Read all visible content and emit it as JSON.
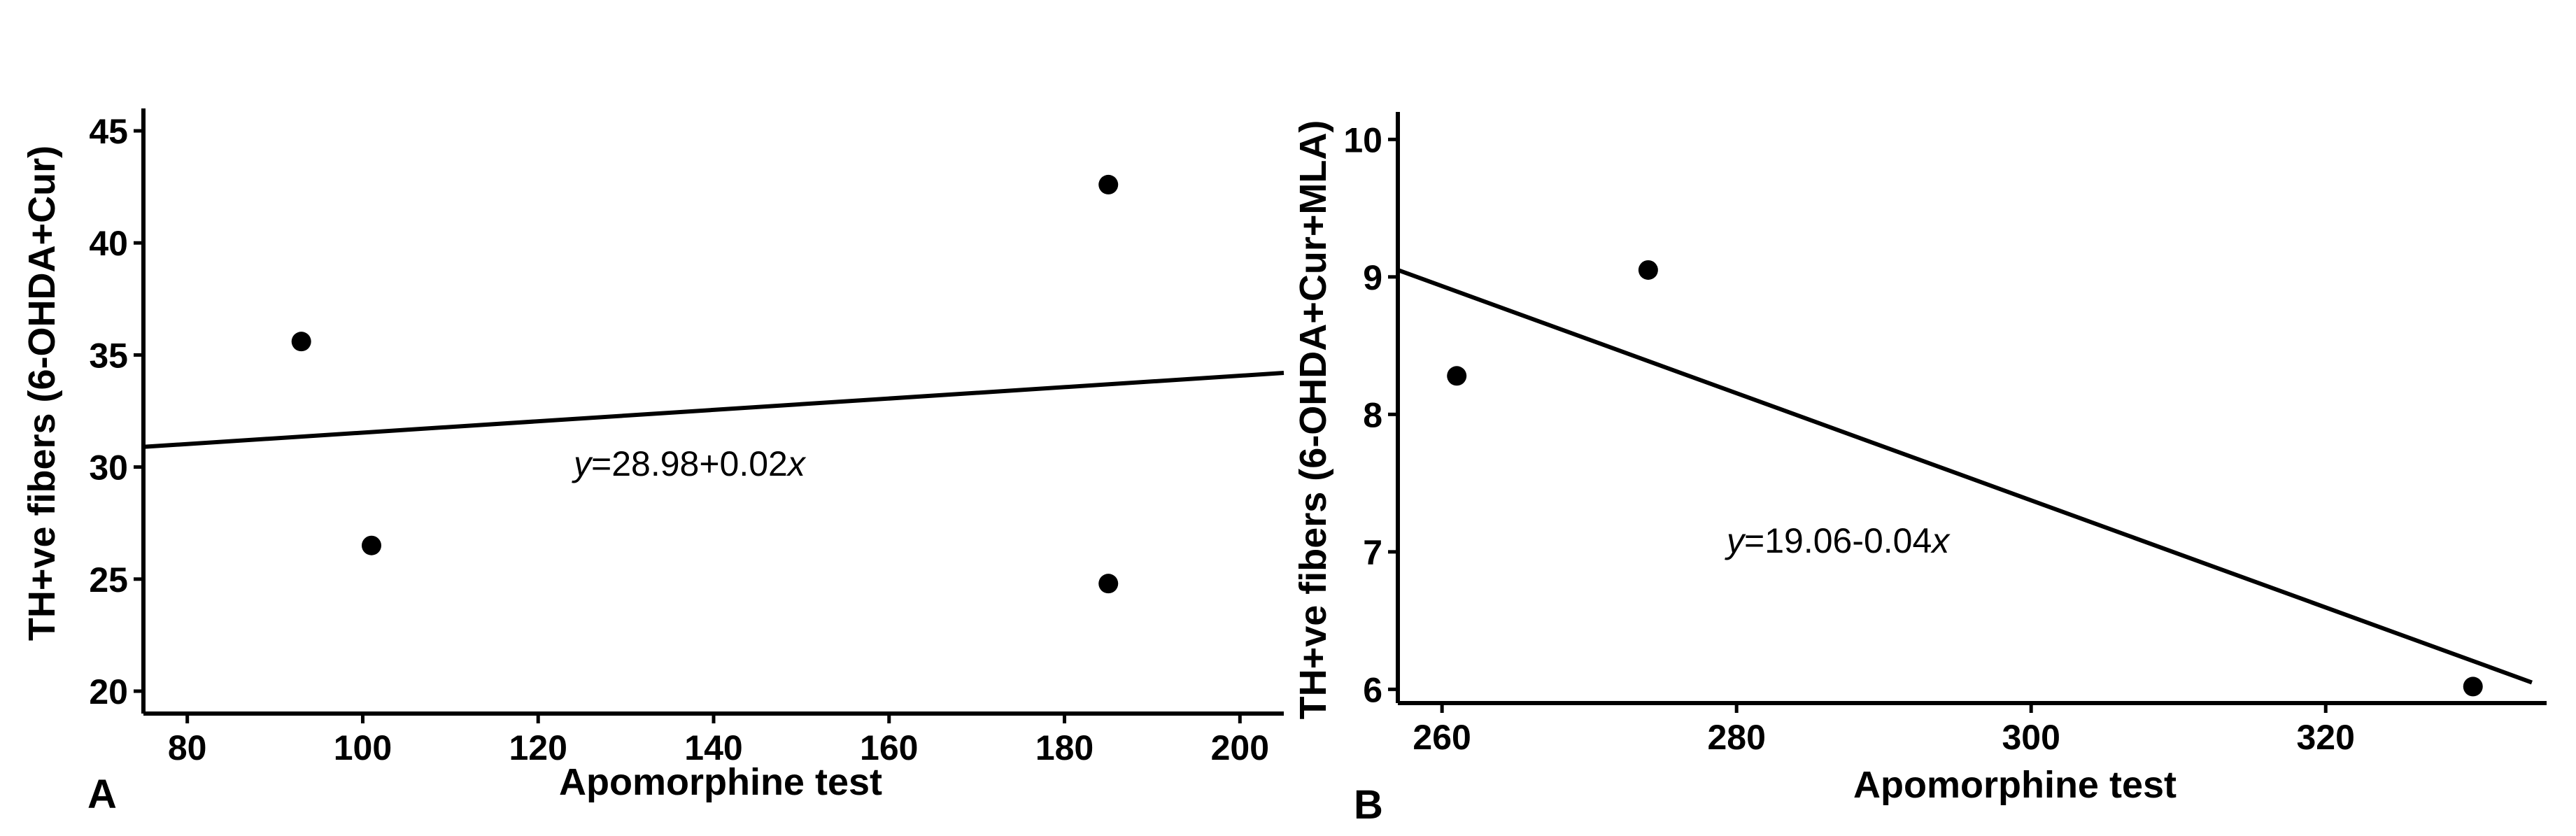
{
  "chart_data": [
    {
      "type": "scatter",
      "panel": "A",
      "xlabel": "Apomorphine test",
      "ylabel": "TH+ve fibers (6-OHDA+Cur)",
      "xlim": [
        75,
        205
      ],
      "ylim": [
        19,
        46
      ],
      "xticks": [
        80,
        100,
        120,
        140,
        160,
        180,
        200
      ],
      "yticks": [
        20,
        25,
        30,
        35,
        40,
        45
      ],
      "points": [
        {
          "x": 93,
          "y": 35.6
        },
        {
          "x": 101,
          "y": 26.5
        },
        {
          "x": 185,
          "y": 42.6
        },
        {
          "x": 185,
          "y": 24.8
        }
      ],
      "fit": {
        "intercept": 28.98,
        "slope": 0.02,
        "x_range": [
          75,
          205
        ],
        "y_range": [
          30.9,
          34.2
        ],
        "equation_prefix": "y",
        "equation_body": "=28.98+0.02",
        "equation_suffix": "x"
      },
      "grid": false,
      "legend": "none"
    },
    {
      "type": "scatter",
      "panel": "B",
      "xlabel": "Apomorphine test",
      "ylabel": "TH+ve fibers (6-OHDA+Cur+MLA)",
      "xlim": [
        257,
        335
      ],
      "ylim": [
        5.9,
        10.2
      ],
      "xticks": [
        260,
        280,
        300,
        320
      ],
      "yticks": [
        6,
        7,
        8,
        9,
        10
      ],
      "points": [
        {
          "x": 261,
          "y": 8.28
        },
        {
          "x": 274,
          "y": 9.05
        },
        {
          "x": 330,
          "y": 6.02
        }
      ],
      "fit": {
        "intercept": 19.06,
        "slope": -0.04,
        "x_range": [
          257,
          334
        ],
        "y_range": [
          9.05,
          6.05
        ],
        "equation_prefix": "y",
        "equation_body": "=19.06-0.04",
        "equation_suffix": "x"
      },
      "grid": false,
      "legend": "none"
    }
  ]
}
